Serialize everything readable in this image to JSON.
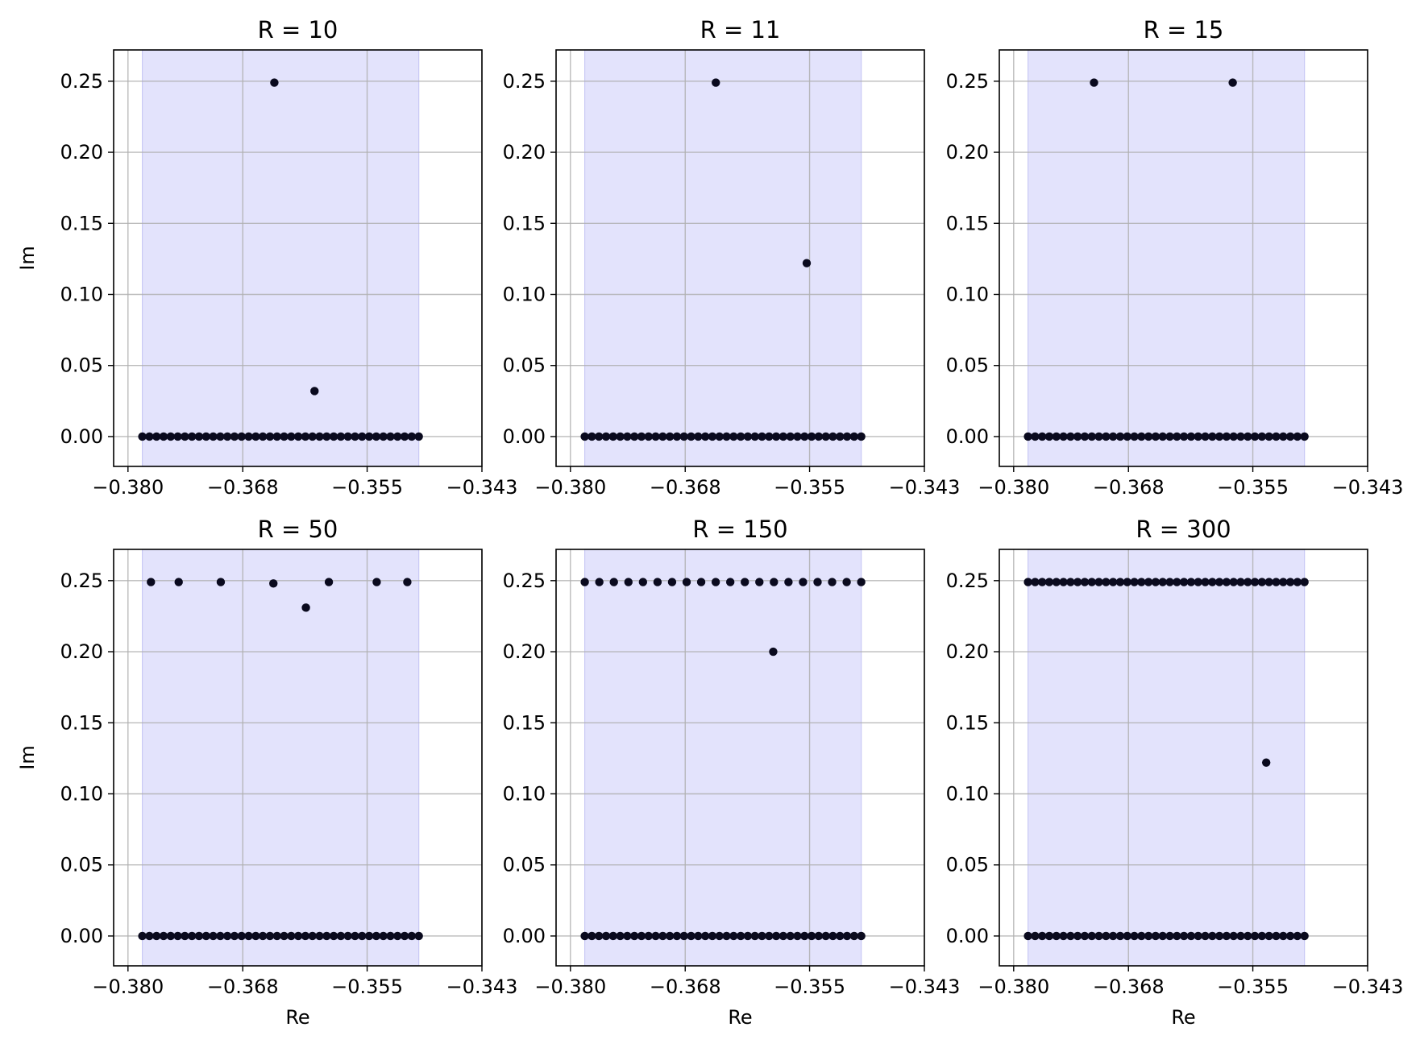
{
  "chart_data": [
    {
      "type": "scatter",
      "title": "R = 10",
      "xlabel": "",
      "ylabel": "Im",
      "xlim": [
        -0.3815,
        -0.343
      ],
      "ylim": [
        -0.021,
        0.272
      ],
      "xticks": [
        -0.38,
        -0.368,
        -0.355,
        -0.343
      ],
      "xtick_labels": [
        "−0.380",
        "−0.368",
        "−0.355",
        "−0.343"
      ],
      "yticks": [
        0.0,
        0.05,
        0.1,
        0.15,
        0.2,
        0.25
      ],
      "ytick_labels": [
        "0.00",
        "0.05",
        "0.10",
        "0.15",
        "0.20",
        "0.25"
      ],
      "grid": true,
      "shaded_band": {
        "x": [
          -0.3785,
          -0.3496
        ],
        "color": "#e3e3fc"
      },
      "marker_color": "#0a0a1e",
      "real_axis_points": {
        "count": 40,
        "x_range": [
          -0.3785,
          -0.3496
        ],
        "im": 0.0
      },
      "points": [
        {
          "re": -0.3647,
          "im": 0.249
        },
        {
          "re": -0.3605,
          "im": 0.032
        }
      ]
    },
    {
      "type": "scatter",
      "title": "R = 11",
      "xlabel": "",
      "ylabel": "",
      "xlim": [
        -0.3815,
        -0.343
      ],
      "ylim": [
        -0.021,
        0.272
      ],
      "xticks": [
        -0.38,
        -0.368,
        -0.355,
        -0.343
      ],
      "xtick_labels": [
        "−0.380",
        "−0.368",
        "−0.355",
        "−0.343"
      ],
      "yticks": [
        0.0,
        0.05,
        0.1,
        0.15,
        0.2,
        0.25
      ],
      "ytick_labels": [
        "0.00",
        "0.05",
        "0.10",
        "0.15",
        "0.20",
        "0.25"
      ],
      "grid": true,
      "shaded_band": {
        "x": [
          -0.3785,
          -0.3496
        ],
        "color": "#e3e3fc"
      },
      "marker_color": "#0a0a1e",
      "real_axis_points": {
        "count": 40,
        "x_range": [
          -0.3785,
          -0.3496
        ],
        "im": 0.0
      },
      "points": [
        {
          "re": -0.3648,
          "im": 0.249
        },
        {
          "re": -0.3553,
          "im": 0.122
        }
      ]
    },
    {
      "type": "scatter",
      "title": "R = 15",
      "xlabel": "",
      "ylabel": "",
      "xlim": [
        -0.3815,
        -0.343
      ],
      "ylim": [
        -0.021,
        0.272
      ],
      "xticks": [
        -0.38,
        -0.368,
        -0.355,
        -0.343
      ],
      "xtick_labels": [
        "−0.380",
        "−0.368",
        "−0.355",
        "−0.343"
      ],
      "yticks": [
        0.0,
        0.05,
        0.1,
        0.15,
        0.2,
        0.25
      ],
      "ytick_labels": [
        "0.00",
        "0.05",
        "0.10",
        "0.15",
        "0.20",
        "0.25"
      ],
      "grid": true,
      "shaded_band": {
        "x": [
          -0.3785,
          -0.3496
        ],
        "color": "#e3e3fc"
      },
      "marker_color": "#0a0a1e",
      "real_axis_points": {
        "count": 40,
        "x_range": [
          -0.3785,
          -0.3496
        ],
        "im": 0.0
      },
      "points": [
        {
          "re": -0.3716,
          "im": 0.249
        },
        {
          "re": -0.3571,
          "im": 0.249
        }
      ]
    },
    {
      "type": "scatter",
      "title": "R = 50",
      "xlabel": "Re",
      "ylabel": "Im",
      "xlim": [
        -0.3815,
        -0.343
      ],
      "ylim": [
        -0.021,
        0.272
      ],
      "xticks": [
        -0.38,
        -0.368,
        -0.355,
        -0.343
      ],
      "xtick_labels": [
        "−0.380",
        "−0.368",
        "−0.355",
        "−0.343"
      ],
      "yticks": [
        0.0,
        0.05,
        0.1,
        0.15,
        0.2,
        0.25
      ],
      "ytick_labels": [
        "0.00",
        "0.05",
        "0.10",
        "0.15",
        "0.20",
        "0.25"
      ],
      "grid": true,
      "shaded_band": {
        "x": [
          -0.3785,
          -0.3496
        ],
        "color": "#e3e3fc"
      },
      "marker_color": "#0a0a1e",
      "real_axis_points": {
        "count": 40,
        "x_range": [
          -0.3785,
          -0.3496
        ],
        "im": 0.0
      },
      "points": [
        {
          "re": -0.3776,
          "im": 0.249
        },
        {
          "re": -0.3747,
          "im": 0.249
        },
        {
          "re": -0.3703,
          "im": 0.249
        },
        {
          "re": -0.3648,
          "im": 0.248
        },
        {
          "re": -0.3614,
          "im": 0.231
        },
        {
          "re": -0.359,
          "im": 0.249
        },
        {
          "re": -0.354,
          "im": 0.249
        },
        {
          "re": -0.3508,
          "im": 0.249
        }
      ]
    },
    {
      "type": "scatter",
      "title": "R = 150",
      "xlabel": "Re",
      "ylabel": "",
      "xlim": [
        -0.3815,
        -0.343
      ],
      "ylim": [
        -0.021,
        0.272
      ],
      "xticks": [
        -0.38,
        -0.368,
        -0.355,
        -0.343
      ],
      "xtick_labels": [
        "−0.380",
        "−0.368",
        "−0.355",
        "−0.343"
      ],
      "yticks": [
        0.0,
        0.05,
        0.1,
        0.15,
        0.2,
        0.25
      ],
      "ytick_labels": [
        "0.00",
        "0.05",
        "0.10",
        "0.15",
        "0.20",
        "0.25"
      ],
      "grid": true,
      "shaded_band": {
        "x": [
          -0.3785,
          -0.3496
        ],
        "color": "#e3e3fc"
      },
      "marker_color": "#0a0a1e",
      "real_axis_points": {
        "count": 40,
        "x_range": [
          -0.3785,
          -0.3496
        ],
        "im": 0.0
      },
      "upper_row_points": {
        "count": 20,
        "x_range": [
          -0.3785,
          -0.3496
        ],
        "im": 0.249
      },
      "points": [
        {
          "re": -0.3588,
          "im": 0.2
        }
      ]
    },
    {
      "type": "scatter",
      "title": "R = 300",
      "xlabel": "Re",
      "ylabel": "",
      "xlim": [
        -0.3815,
        -0.343
      ],
      "ylim": [
        -0.021,
        0.272
      ],
      "xticks": [
        -0.38,
        -0.368,
        -0.355,
        -0.343
      ],
      "xtick_labels": [
        "−0.380",
        "−0.368",
        "−0.355",
        "−0.343"
      ],
      "yticks": [
        0.0,
        0.05,
        0.1,
        0.15,
        0.2,
        0.25
      ],
      "ytick_labels": [
        "0.00",
        "0.05",
        "0.10",
        "0.15",
        "0.20",
        "0.25"
      ],
      "grid": true,
      "shaded_band": {
        "x": [
          -0.3785,
          -0.3496
        ],
        "color": "#e3e3fc"
      },
      "marker_color": "#0a0a1e",
      "real_axis_points": {
        "count": 40,
        "x_range": [
          -0.3785,
          -0.3496
        ],
        "im": 0.0
      },
      "upper_row_points": {
        "count": 40,
        "x_range": [
          -0.3785,
          -0.3496
        ],
        "im": 0.249
      },
      "points": [
        {
          "re": -0.3536,
          "im": 0.122
        }
      ]
    }
  ]
}
